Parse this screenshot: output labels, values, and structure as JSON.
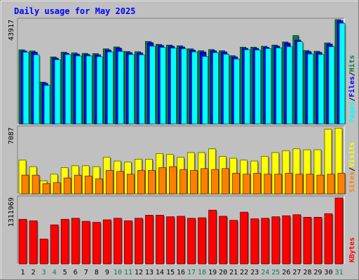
{
  "chart_data": {
    "type": "bar",
    "title": "Daily usage for May 2025",
    "categories": [
      "1",
      "2",
      "3",
      "4",
      "5",
      "6",
      "7",
      "8",
      "9",
      "10",
      "11",
      "12",
      "13",
      "14",
      "15",
      "16",
      "17",
      "18",
      "19",
      "20",
      "21",
      "22",
      "23",
      "24",
      "25",
      "26",
      "27",
      "28",
      "29",
      "30",
      "31"
    ],
    "weekend_days": [
      "3",
      "4",
      "10",
      "11",
      "17",
      "18",
      "24",
      "25",
      "31"
    ],
    "panels": [
      {
        "id": "hits",
        "ylim": [
          0,
          43917
        ],
        "max_label": "43917",
        "legend": [
          "Pages",
          "Files",
          "Hits"
        ],
        "series": [
          {
            "name": "Hits",
            "values": [
              31200,
              30700,
              17600,
              28200,
              30200,
              29900,
              29700,
              29600,
              31600,
              32400,
              30500,
              30400,
              34700,
              33500,
              33200,
              32900,
              31600,
              30800,
              31300,
              30800,
              28700,
              32300,
              32300,
              32700,
              33200,
              34500,
              37200,
              30900,
              30600,
              34100,
              43900
            ]
          },
          {
            "name": "Files",
            "values": [
              30700,
              30200,
              17100,
              27700,
              29700,
              29400,
              29200,
              29100,
              31100,
              31900,
              30000,
              29900,
              34200,
              33000,
              32700,
              32400,
              31100,
              30300,
              30800,
              30300,
              28200,
              31800,
              31800,
              32200,
              32700,
              34000,
              35300,
              30400,
              30100,
              33600,
              43400
            ]
          },
          {
            "name": "Pages",
            "values": [
              30200,
              29100,
              16200,
              27000,
              29200,
              28600,
              28600,
              28300,
              30300,
              30500,
              29200,
              29100,
              32700,
              32200,
              31900,
              31600,
              30300,
              28400,
              30000,
              29300,
              27300,
              31200,
              31100,
              31700,
              32000,
              32500,
              34600,
              29400,
              29200,
              32500,
              42400
            ]
          }
        ]
      },
      {
        "id": "visits",
        "ylim": [
          0,
          7087
        ],
        "max_label": "7087",
        "legend": [
          "Sites",
          "Visits"
        ],
        "series": [
          {
            "name": "Visits",
            "values": [
              3600,
              2900,
              1400,
              2100,
              2800,
              3000,
              3000,
              2900,
              3900,
              3500,
              3400,
              3700,
              3700,
              4300,
              4200,
              3900,
              4400,
              4400,
              4800,
              4000,
              3800,
              3600,
              3500,
              4000,
              4400,
              4600,
              4800,
              4700,
              4700,
              6900,
              7000
            ]
          },
          {
            "name": "Sites",
            "values": [
              2000,
              2000,
              1100,
              1200,
              1700,
              2000,
              1900,
              1600,
              2500,
              2400,
              2100,
              2500,
              2500,
              2800,
              2900,
              2600,
              2500,
              2700,
              2600,
              2700,
              2200,
              2100,
              2200,
              2100,
              2100,
              2200,
              2100,
              2100,
              2000,
              2100,
              2200
            ]
          }
        ]
      },
      {
        "id": "kbytes",
        "ylim": [
          0,
          1311969
        ],
        "max_label": "1311969",
        "legend": [
          "KBytes"
        ],
        "series": [
          {
            "name": "KBytes",
            "values": [
              880000,
              850000,
              490000,
              770000,
              880000,
              900000,
              840000,
              820000,
              870000,
              900000,
              850000,
              900000,
              960000,
              960000,
              930000,
              940000,
              900000,
              910000,
              1060000,
              940000,
              860000,
              1020000,
              890000,
              900000,
              930000,
              950000,
              970000,
              920000,
              920000,
              990000,
              1300000
            ]
          }
        ]
      }
    ],
    "colors": {
      "hits": "#008040",
      "files": "#0000ff",
      "pages": "#00ffff",
      "visits": "#ffff00",
      "sites": "#ff8000",
      "kbytes": "#ff0000",
      "weekend_label": "#00805c",
      "title": "#0000ff",
      "plot_bg": "#c0c0c0"
    }
  }
}
